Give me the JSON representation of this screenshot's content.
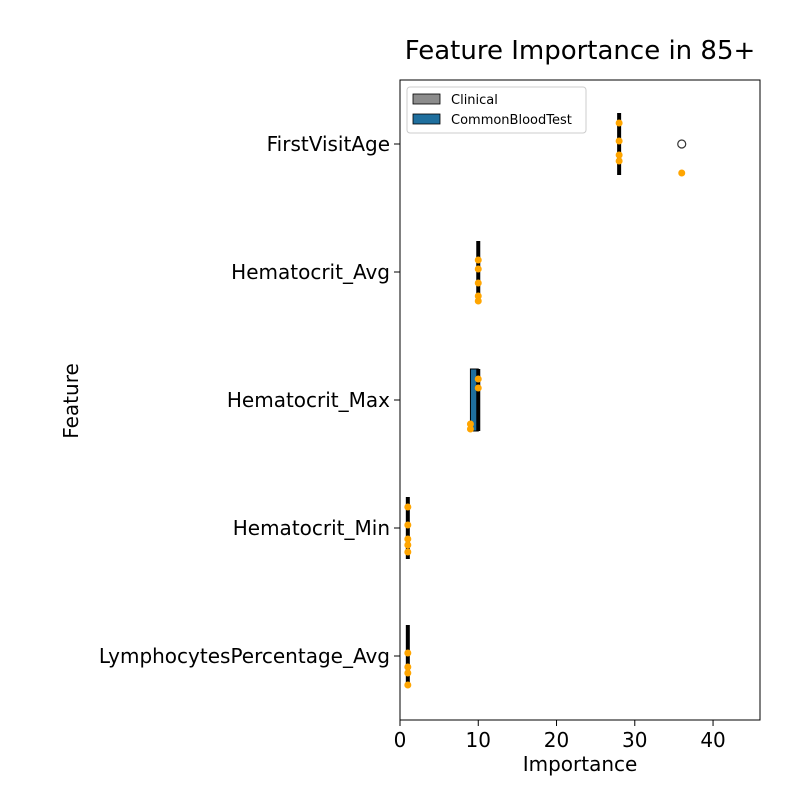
{
  "chart_data": {
    "type": "box",
    "orientation": "horizontal",
    "title": "Feature Importance in 85+",
    "xlabel": "Importance",
    "ylabel": "Feature",
    "xlim": [
      0,
      46
    ],
    "xticks": [
      0,
      10,
      20,
      30,
      40
    ],
    "categories": [
      "FirstVisitAge",
      "Hematocrit_Avg",
      "Hematocrit_Max",
      "Hematocrit_Min",
      "LymphocytesPercentage_Avg"
    ],
    "legend": {
      "location": "top-left",
      "entries": [
        {
          "name": "Clinical",
          "color": "#8c8c8c"
        },
        {
          "name": "CommonBloodTest",
          "color": "#1f6f9e"
        }
      ]
    },
    "boxes": [
      {
        "feature": "FirstVisitAge",
        "group": "Clinical",
        "min": 28,
        "q1": 28,
        "median": 28,
        "q3": 28,
        "max": 28,
        "outliers": [
          36
        ]
      },
      {
        "feature": "Hematocrit_Avg",
        "group": "CommonBloodTest",
        "min": 10,
        "q1": 10,
        "median": 10,
        "q3": 10,
        "max": 10,
        "outliers": []
      },
      {
        "feature": "Hematocrit_Max",
        "group": "CommonBloodTest",
        "min": 9,
        "q1": 9,
        "median": 10,
        "q3": 10,
        "max": 10,
        "outliers": []
      },
      {
        "feature": "Hematocrit_Min",
        "group": "CommonBloodTest",
        "min": 1,
        "q1": 1,
        "median": 1,
        "q3": 1,
        "max": 1,
        "outliers": []
      },
      {
        "feature": "LymphocytesPercentage_Avg",
        "group": "CommonBloodTest",
        "min": 1,
        "q1": 1,
        "median": 1,
        "q3": 1,
        "max": 1,
        "outliers": []
      }
    ],
    "points": [
      {
        "feature": "FirstVisitAge",
        "values": [
          28,
          28,
          28,
          28,
          36
        ]
      },
      {
        "feature": "Hematocrit_Avg",
        "values": [
          10,
          10,
          10,
          10,
          10
        ]
      },
      {
        "feature": "Hematocrit_Max",
        "values": [
          9,
          10,
          9,
          10
        ]
      },
      {
        "feature": "Hematocrit_Min",
        "values": [
          1,
          1,
          1,
          1,
          1
        ]
      },
      {
        "feature": "LymphocytesPercentage_Avg",
        "values": [
          1,
          1,
          1,
          1
        ]
      }
    ],
    "point_color": "#ffa500",
    "grid": false
  }
}
